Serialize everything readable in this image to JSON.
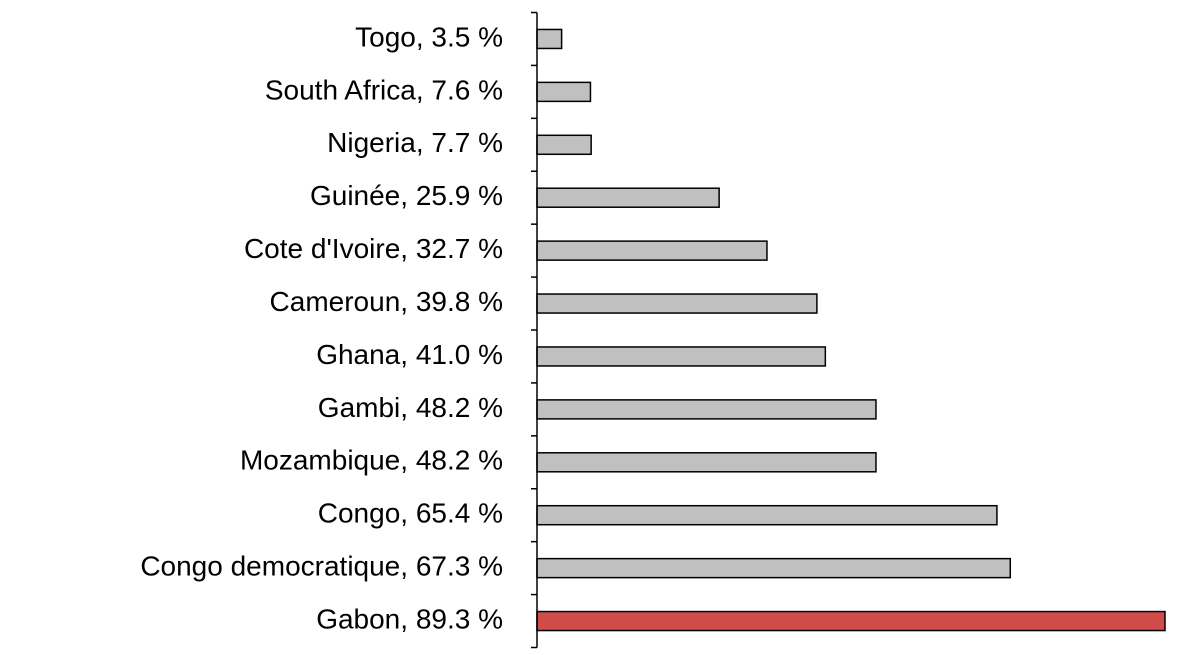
{
  "chart_data": {
    "type": "hbar",
    "categories": [
      "Togo, 3.5 %",
      "South Africa, 7.6 %",
      "Nigeria, 7.7 %",
      "Guinée, 25.9 %",
      "Cote d'Ivoire, 32.7 %",
      "Cameroun, 39.8 %",
      "Ghana, 41.0 %",
      "Gambi, 48.2 %",
      "Mozambique, 48.2 %",
      "Congo, 65.4 %",
      "Congo democratique, 67.3 %",
      "Gabon, 89.3 %"
    ],
    "values": [
      3.5,
      7.6,
      7.7,
      25.9,
      32.7,
      39.8,
      41.0,
      48.2,
      48.2,
      65.4,
      67.3,
      89.3
    ],
    "colors": [
      "#c0c0c0",
      "#c0c0c0",
      "#c0c0c0",
      "#c0c0c0",
      "#c0c0c0",
      "#c0c0c0",
      "#c0c0c0",
      "#c0c0c0",
      "#c0c0c0",
      "#c0c0c0",
      "#c0c0c0",
      "#d24b4b"
    ]
  }
}
